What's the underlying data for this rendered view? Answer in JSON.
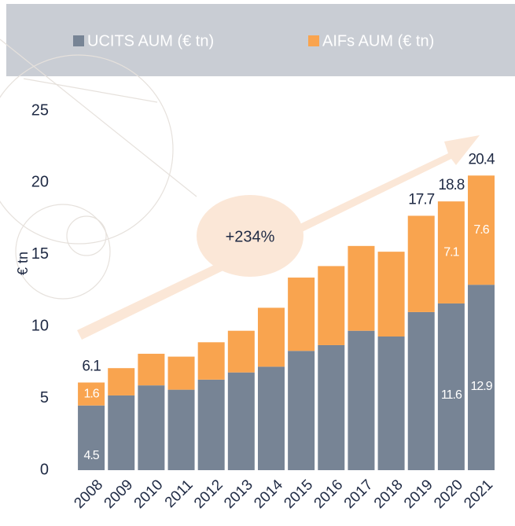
{
  "chart_data": {
    "type": "stacked_bar",
    "y_label": "€ tn",
    "annotation": "+234%",
    "categories": [
      "2008",
      "2009",
      "2010",
      "2011",
      "2012",
      "2013",
      "2014",
      "2015",
      "2016",
      "2017",
      "2018",
      "2019",
      "2020",
      "2021"
    ],
    "series": [
      {
        "name": "UCITS AUM (€ tn)",
        "color": "#778495",
        "values": [
          4.5,
          5.2,
          5.9,
          5.6,
          6.3,
          6.8,
          7.2,
          8.3,
          8.7,
          9.7,
          9.3,
          11.0,
          11.6,
          12.9
        ],
        "value_labels": [
          "4.5",
          null,
          null,
          null,
          null,
          null,
          null,
          null,
          null,
          null,
          null,
          null,
          "11.6",
          "12.9"
        ]
      },
      {
        "name": "AIFs AUM (€ tn)",
        "color": "#f9a44f",
        "values": [
          1.6,
          1.9,
          2.2,
          2.3,
          2.6,
          2.9,
          4.1,
          5.1,
          5.5,
          5.9,
          5.9,
          6.7,
          7.1,
          7.6
        ],
        "value_labels": [
          "1.6",
          null,
          null,
          null,
          null,
          null,
          null,
          null,
          null,
          null,
          null,
          null,
          "7.1",
          "7.6"
        ]
      }
    ],
    "totals": [
      6.1,
      null,
      null,
      null,
      null,
      null,
      null,
      null,
      null,
      null,
      null,
      17.7,
      18.8,
      20.4
    ],
    "ylim": [
      0,
      25
    ],
    "yticks": [
      0,
      5,
      10,
      15,
      20,
      25
    ],
    "grid": false,
    "legend": "top"
  }
}
